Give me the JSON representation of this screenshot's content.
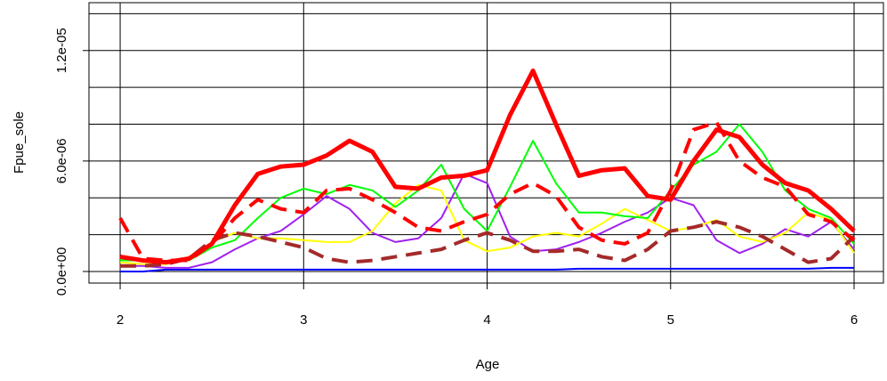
{
  "chart_data": {
    "type": "line",
    "x_label": "Age",
    "y_label": "Fpue_sole",
    "x": [
      2,
      2.125,
      2.25,
      2.375,
      2.5,
      2.625,
      2.75,
      2.875,
      3,
      3.125,
      3.25,
      3.375,
      3.5,
      3.625,
      3.75,
      3.875,
      4,
      4.125,
      4.25,
      4.375,
      4.5,
      4.625,
      4.75,
      4.875,
      5,
      5.125,
      5.25,
      5.375,
      5.5,
      5.625,
      5.75,
      5.875,
      6
    ],
    "xlim": [
      1.83,
      6.16
    ],
    "xticks": [
      2,
      3,
      4,
      5,
      6
    ],
    "ylim": [
      -6.3e-07,
      1.46e-05
    ],
    "yticks": [
      {
        "value": 0,
        "label": "0.0e+00"
      },
      {
        "value": 6e-06,
        "label": "6.0e-06"
      },
      {
        "value": 1.2e-05,
        "label": "1.2e-05"
      }
    ],
    "ygrid": [
      0,
      2e-06,
      4e-06,
      6e-06,
      8e-06,
      1e-05,
      1.2e-05,
      1.4e-05
    ],
    "grid": true,
    "series": [
      {
        "color": "#ff0000",
        "width": 5,
        "dashed": false,
        "values": [
          8e-07,
          6e-07,
          5e-07,
          7e-07,
          1.5e-06,
          3.6e-06,
          5.3e-06,
          5.7e-06,
          5.8e-06,
          6.3e-06,
          7.1e-06,
          6.5e-06,
          4.6e-06,
          4.5e-06,
          5.1e-06,
          5.2e-06,
          5.5e-06,
          8.5e-06,
          1.09e-05,
          8e-06,
          5.2e-06,
          5.5e-06,
          5.6e-06,
          4.1e-06,
          3.9e-06,
          6e-06,
          7.7e-06,
          7.3e-06,
          5.8e-06,
          4.8e-06,
          4.4e-06,
          3.4e-06,
          2.2e-06
        ]
      },
      {
        "color": "#ff0000",
        "width": 4,
        "dashed": true,
        "values": [
          2.9e-06,
          7e-07,
          6e-07,
          6e-07,
          1.5e-06,
          2.9e-06,
          3.9e-06,
          3.4e-06,
          3.2e-06,
          4.4e-06,
          4.5e-06,
          3.9e-06,
          3.2e-06,
          2.4e-06,
          2.2e-06,
          2.7e-06,
          3.1e-06,
          4.2e-06,
          4.8e-06,
          4.1e-06,
          2.4e-06,
          1.7e-06,
          1.5e-06,
          2.1e-06,
          4.4e-06,
          7.7e-06,
          8.1e-06,
          6e-06,
          5.1e-06,
          4.6e-06,
          3.1e-06,
          2.7e-06,
          1.7e-06
        ]
      },
      {
        "color": "#a52a2a",
        "width": 4,
        "dashed": true,
        "values": [
          3e-07,
          3e-07,
          4e-07,
          7e-07,
          1.7e-06,
          2.1e-06,
          1.9e-06,
          1.6e-06,
          1.3e-06,
          7e-07,
          5e-07,
          6e-07,
          8e-07,
          1e-06,
          1.2e-06,
          1.7e-06,
          2.1e-06,
          1.7e-06,
          1.1e-06,
          1.1e-06,
          1.2e-06,
          8e-07,
          6e-07,
          1.2e-06,
          2.2e-06,
          2.4e-06,
          2.7e-06,
          2.4e-06,
          1.9e-06,
          1.2e-06,
          5e-07,
          7e-07,
          1.9e-06
        ]
      },
      {
        "color": "#00ff00",
        "width": 2,
        "dashed": false,
        "values": [
          6e-07,
          6e-07,
          5e-07,
          6e-07,
          1.3e-06,
          1.7e-06,
          2.9e-06,
          4e-06,
          4.5e-06,
          4.2e-06,
          4.7e-06,
          4.4e-06,
          3.5e-06,
          4.4e-06,
          5.8e-06,
          3.4e-06,
          2.2e-06,
          4.6e-06,
          7.1e-06,
          4.8e-06,
          3.2e-06,
          3.2e-06,
          3e-06,
          2.9e-06,
          4.4e-06,
          5.8e-06,
          6.5e-06,
          8e-06,
          6.5e-06,
          4.4e-06,
          3.4e-06,
          2.9e-06,
          1.5e-06
        ]
      },
      {
        "color": "#ffff00",
        "width": 2,
        "dashed": false,
        "values": [
          5e-07,
          4e-07,
          4e-07,
          7e-07,
          1.6e-06,
          2.1e-06,
          1.8e-06,
          1.8e-06,
          1.7e-06,
          1.6e-06,
          1.6e-06,
          2.2e-06,
          3.7e-06,
          4.7e-06,
          4.4e-06,
          1.7e-06,
          1.1e-06,
          1.3e-06,
          1.9e-06,
          2.1e-06,
          1.9e-06,
          2.6e-06,
          3.4e-06,
          2.8e-06,
          2.2e-06,
          2.4e-06,
          2.8e-06,
          1.9e-06,
          1.6e-06,
          2.1e-06,
          3.2e-06,
          2.8e-06,
          1e-06
        ]
      },
      {
        "color": "#a020f0",
        "width": 2,
        "dashed": false,
        "values": [
          3e-07,
          3e-07,
          2e-07,
          2e-07,
          5e-07,
          1.2e-06,
          1.8e-06,
          2.2e-06,
          3.1e-06,
          4.1e-06,
          3.4e-06,
          2.1e-06,
          1.6e-06,
          1.8e-06,
          2.9e-06,
          5.3e-06,
          4.8e-06,
          1.9e-06,
          1.1e-06,
          1.2e-06,
          1.6e-06,
          2.1e-06,
          2.7e-06,
          3.2e-06,
          4e-06,
          3.6e-06,
          1.7e-06,
          1e-06,
          1.5e-06,
          2.3e-06,
          1.9e-06,
          2.7e-06,
          1.2e-06
        ]
      },
      {
        "color": "#0000ff",
        "width": 2,
        "dashed": false,
        "values": [
          0,
          0,
          1e-07,
          1e-07,
          1e-07,
          1e-07,
          1e-07,
          1e-07,
          1e-07,
          1e-07,
          1e-07,
          1e-07,
          1e-07,
          1e-07,
          1e-07,
          1e-07,
          1e-07,
          1e-07,
          1e-07,
          1e-07,
          1.5e-07,
          1.5e-07,
          1.5e-07,
          1.5e-07,
          1.5e-07,
          1.5e-07,
          1.5e-07,
          1.5e-07,
          1.5e-07,
          1.5e-07,
          1.5e-07,
          2e-07,
          2e-07
        ]
      }
    ]
  }
}
